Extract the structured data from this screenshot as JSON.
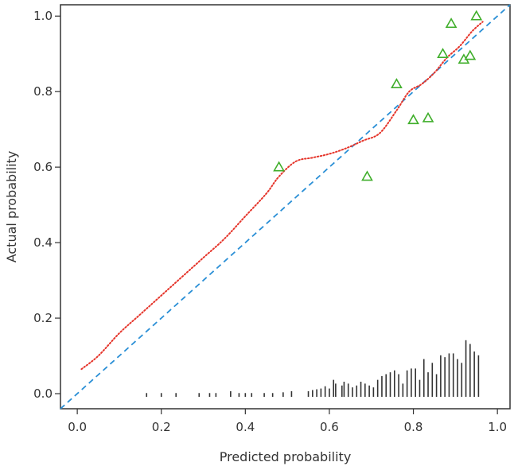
{
  "chart_data": {
    "type": "scatter",
    "title": "",
    "xlabel": "Predicted probability",
    "ylabel": "Actual probability",
    "xlim": [
      -0.04,
      1.03
    ],
    "ylim": [
      -0.04,
      1.03
    ],
    "x_ticks": [
      "0.0",
      "0.2",
      "0.4",
      "0.6",
      "0.8",
      "1.0"
    ],
    "y_ticks": [
      "0.0",
      "0.2",
      "0.4",
      "0.6",
      "0.8",
      "1.0"
    ],
    "grid": false,
    "legend": "none",
    "colors": {
      "ideal": "#2a8fd6",
      "calibration": "#e5352b",
      "points": "#3fae2a",
      "rug": "#333333",
      "frame": "#333333"
    },
    "series": [
      {
        "kind": "ideal_line",
        "style": "dashed",
        "x": [
          -0.04,
          1.03
        ],
        "y": [
          -0.04,
          1.03
        ]
      },
      {
        "kind": "calibration_curve",
        "style": "dotted",
        "x": [
          0.01,
          0.05,
          0.1,
          0.15,
          0.2,
          0.25,
          0.3,
          0.35,
          0.4,
          0.45,
          0.48,
          0.52,
          0.56,
          0.6,
          0.64,
          0.68,
          0.72,
          0.76,
          0.79,
          0.82,
          0.85,
          0.88,
          0.91,
          0.94,
          0.965
        ],
        "y": [
          0.065,
          0.1,
          0.16,
          0.21,
          0.26,
          0.31,
          0.36,
          0.41,
          0.47,
          0.53,
          0.575,
          0.615,
          0.625,
          0.635,
          0.65,
          0.67,
          0.69,
          0.75,
          0.8,
          0.82,
          0.85,
          0.89,
          0.92,
          0.96,
          0.985
        ]
      },
      {
        "kind": "points",
        "marker": "triangle-open",
        "x": [
          0.48,
          0.69,
          0.76,
          0.8,
          0.835,
          0.87,
          0.89,
          0.92,
          0.935,
          0.95
        ],
        "y": [
          0.6,
          0.575,
          0.82,
          0.725,
          0.73,
          0.9,
          0.98,
          0.885,
          0.895,
          1.0
        ]
      }
    ],
    "rug": {
      "x": [
        0.165,
        0.2,
        0.235,
        0.29,
        0.315,
        0.33,
        0.365,
        0.385,
        0.4,
        0.415,
        0.445,
        0.465,
        0.49,
        0.51,
        0.55,
        0.56,
        0.57,
        0.58,
        0.59,
        0.6,
        0.61,
        0.615,
        0.63,
        0.635,
        0.645,
        0.655,
        0.665,
        0.675,
        0.685,
        0.695,
        0.705,
        0.715,
        0.725,
        0.735,
        0.745,
        0.755,
        0.765,
        0.775,
        0.785,
        0.795,
        0.805,
        0.815,
        0.825,
        0.835,
        0.845,
        0.855,
        0.865,
        0.875,
        0.885,
        0.895,
        0.905,
        0.915,
        0.925,
        0.935,
        0.945,
        0.955
      ],
      "h": [
        0.01,
        0.01,
        0.01,
        0.01,
        0.01,
        0.01,
        0.015,
        0.01,
        0.01,
        0.01,
        0.01,
        0.01,
        0.012,
        0.015,
        0.015,
        0.018,
        0.02,
        0.022,
        0.028,
        0.022,
        0.045,
        0.035,
        0.03,
        0.04,
        0.035,
        0.025,
        0.03,
        0.04,
        0.035,
        0.03,
        0.025,
        0.045,
        0.055,
        0.06,
        0.065,
        0.07,
        0.06,
        0.035,
        0.07,
        0.075,
        0.075,
        0.045,
        0.1,
        0.065,
        0.09,
        0.06,
        0.11,
        0.105,
        0.115,
        0.115,
        0.1,
        0.09,
        0.15,
        0.14,
        0.12,
        0.11
      ]
    }
  }
}
